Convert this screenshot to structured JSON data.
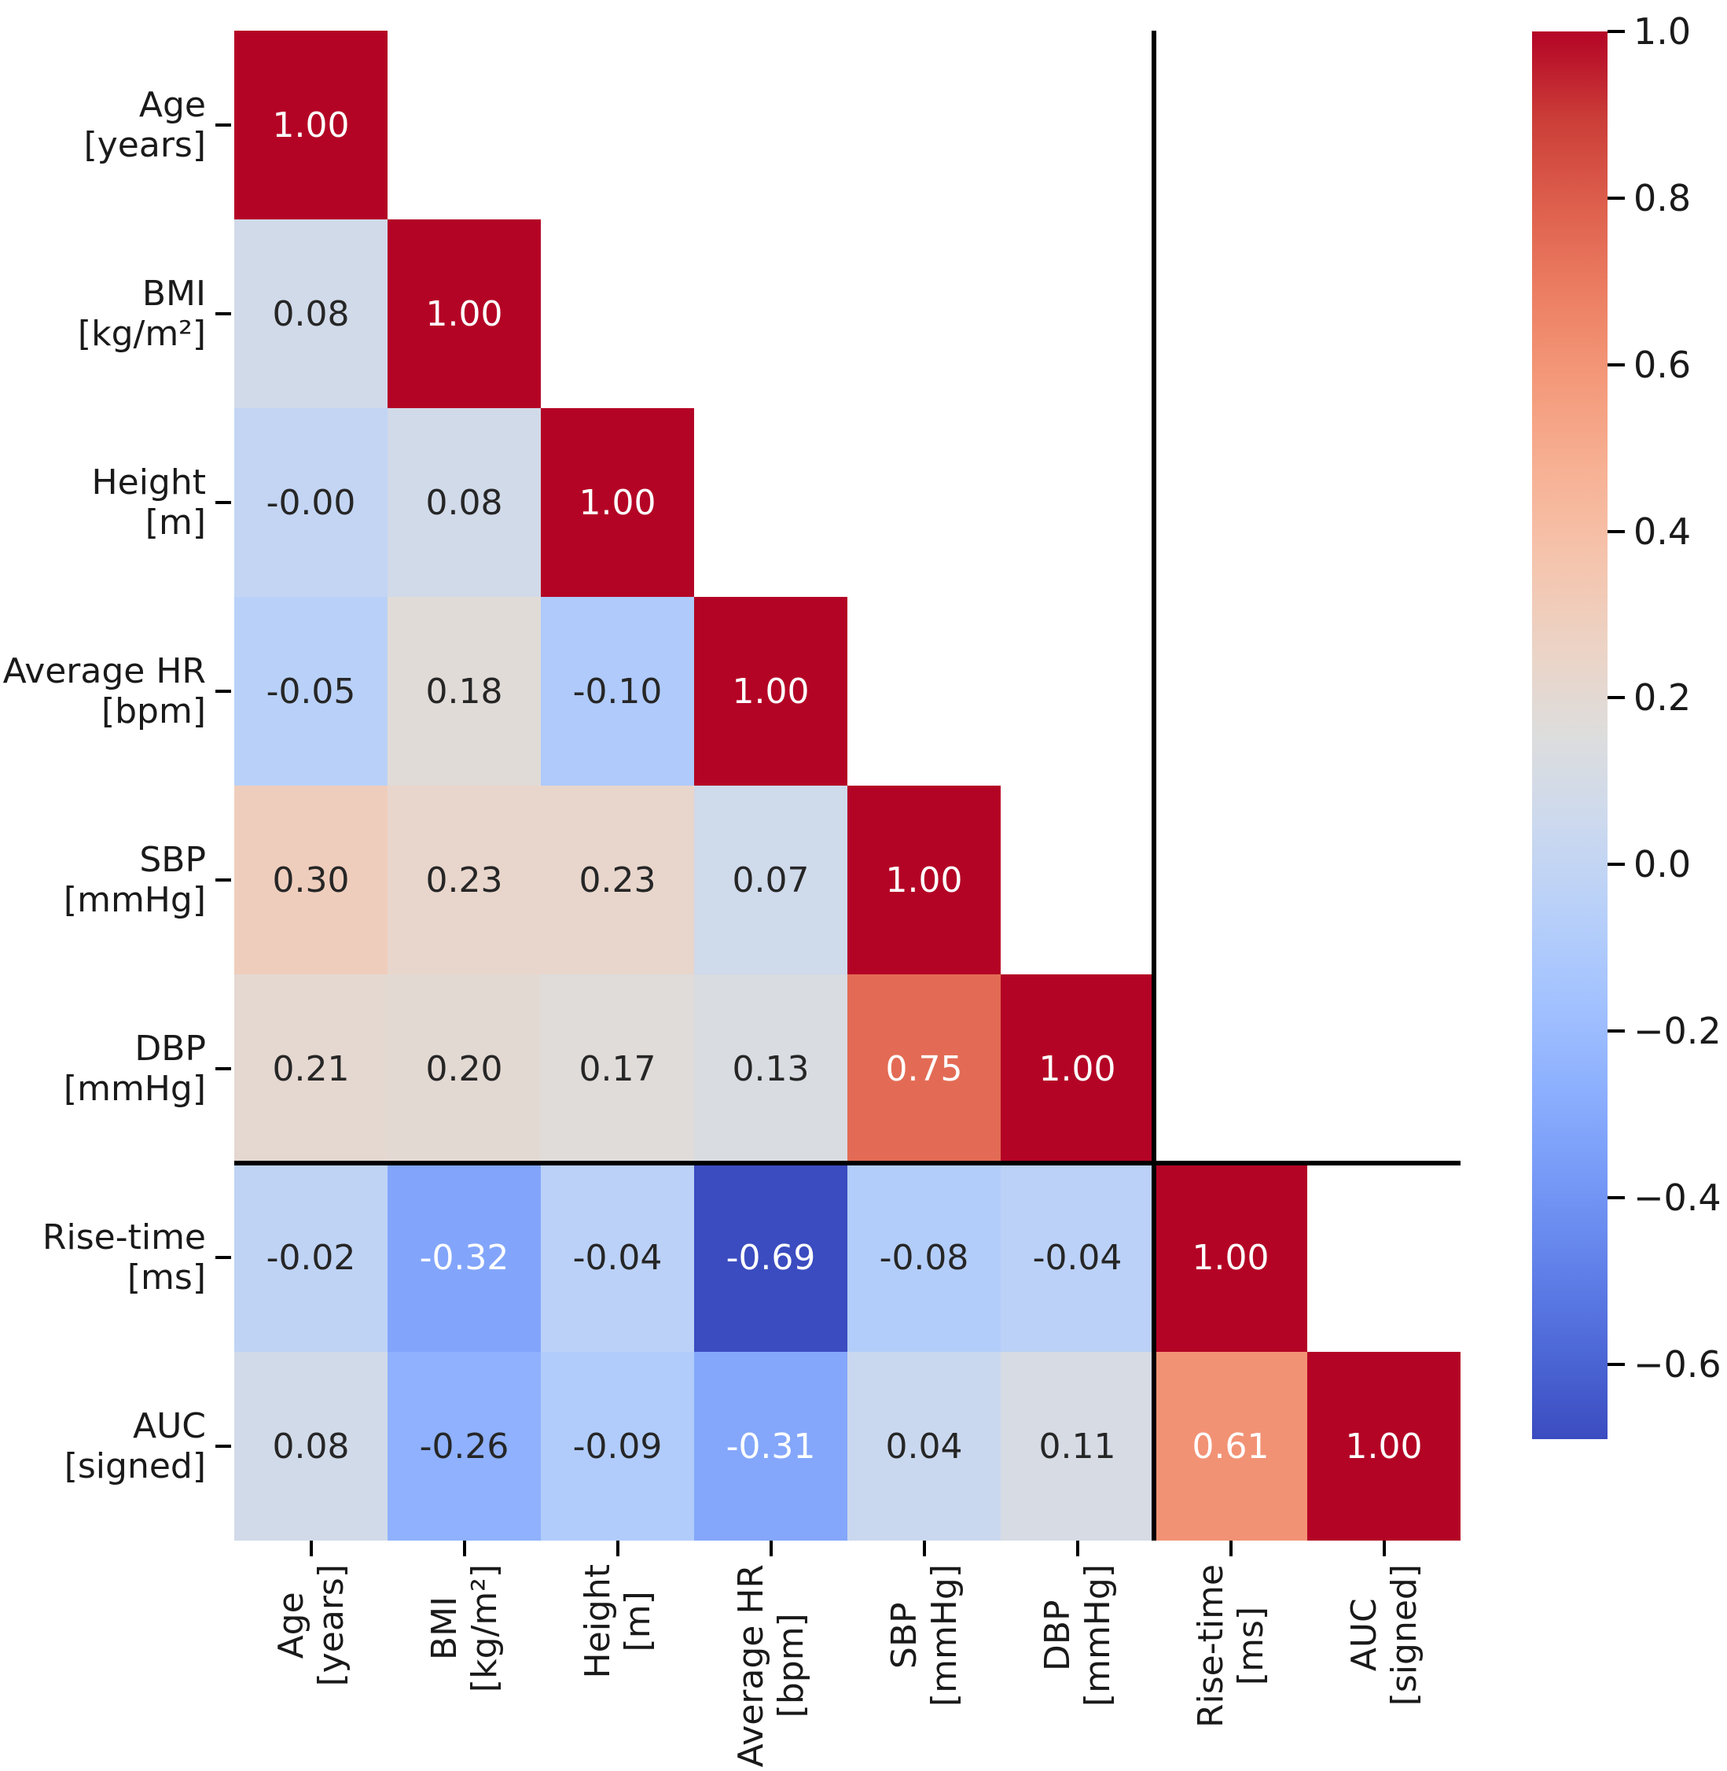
{
  "figure": {
    "background": "#ffffff"
  },
  "chart_data": {
    "type": "heatmap",
    "title": "",
    "subtitle": "",
    "triangle": "lower",
    "variables": [
      [
        "Age",
        "[years]"
      ],
      [
        "BMI",
        "[kg/m²]"
      ],
      [
        "Height",
        "[m]"
      ],
      [
        "Average HR",
        "[bpm]"
      ],
      [
        "SBP",
        "[mmHg]"
      ],
      [
        "DBP",
        "[mmHg]"
      ],
      [
        "Rise-time",
        "[ms]"
      ],
      [
        "AUC",
        "[signed]"
      ]
    ],
    "values": [
      [
        1.0
      ],
      [
        0.08,
        1.0
      ],
      [
        -0.0,
        0.08,
        1.0
      ],
      [
        -0.05,
        0.18,
        -0.1,
        1.0
      ],
      [
        0.3,
        0.23,
        0.23,
        0.07,
        1.0
      ],
      [
        0.21,
        0.2,
        0.17,
        0.13,
        0.75,
        1.0
      ],
      [
        -0.02,
        -0.32,
        -0.04,
        -0.69,
        -0.08,
        -0.04,
        1.0
      ],
      [
        0.08,
        -0.26,
        -0.09,
        -0.31,
        0.04,
        0.11,
        0.61,
        1.0
      ]
    ],
    "cell_texts": [
      [
        "1.00"
      ],
      [
        "0.08",
        "1.00"
      ],
      [
        "-0.00",
        "0.08",
        "1.00"
      ],
      [
        "-0.05",
        "0.18",
        "-0.10",
        "1.00"
      ],
      [
        "0.30",
        "0.23",
        "0.23",
        "0.07",
        "1.00"
      ],
      [
        "0.21",
        "0.20",
        "0.17",
        "0.13",
        "0.75",
        "1.00"
      ],
      [
        "-0.02",
        "-0.32",
        "-0.04",
        "-0.69",
        "-0.08",
        "-0.04",
        "1.00"
      ],
      [
        "0.08",
        "-0.26",
        "-0.09",
        "-0.31",
        "0.04",
        "0.11",
        "0.61",
        "1.00"
      ]
    ],
    "separator_before_index": 6,
    "colormap": {
      "name": "coolwarm",
      "vmin": -0.69,
      "vmax": 1.0,
      "negative_color": "#3b4cc0",
      "neutral_color": "#dddddd",
      "positive_color": "#b40426"
    },
    "annotation_text_colors": {
      "dark": "#262626",
      "light": "#ffffff"
    },
    "colorbar": {
      "position": "right",
      "tick_values": [
        1.0,
        0.8,
        0.6,
        0.4,
        0.2,
        0.0,
        -0.2,
        -0.4,
        -0.6
      ],
      "tick_labels": [
        "1.0",
        "0.8",
        "0.6",
        "0.4",
        "0.2",
        "0.0",
        "−0.2",
        "−0.4",
        "−0.6"
      ]
    },
    "grid": false,
    "legend": false
  }
}
